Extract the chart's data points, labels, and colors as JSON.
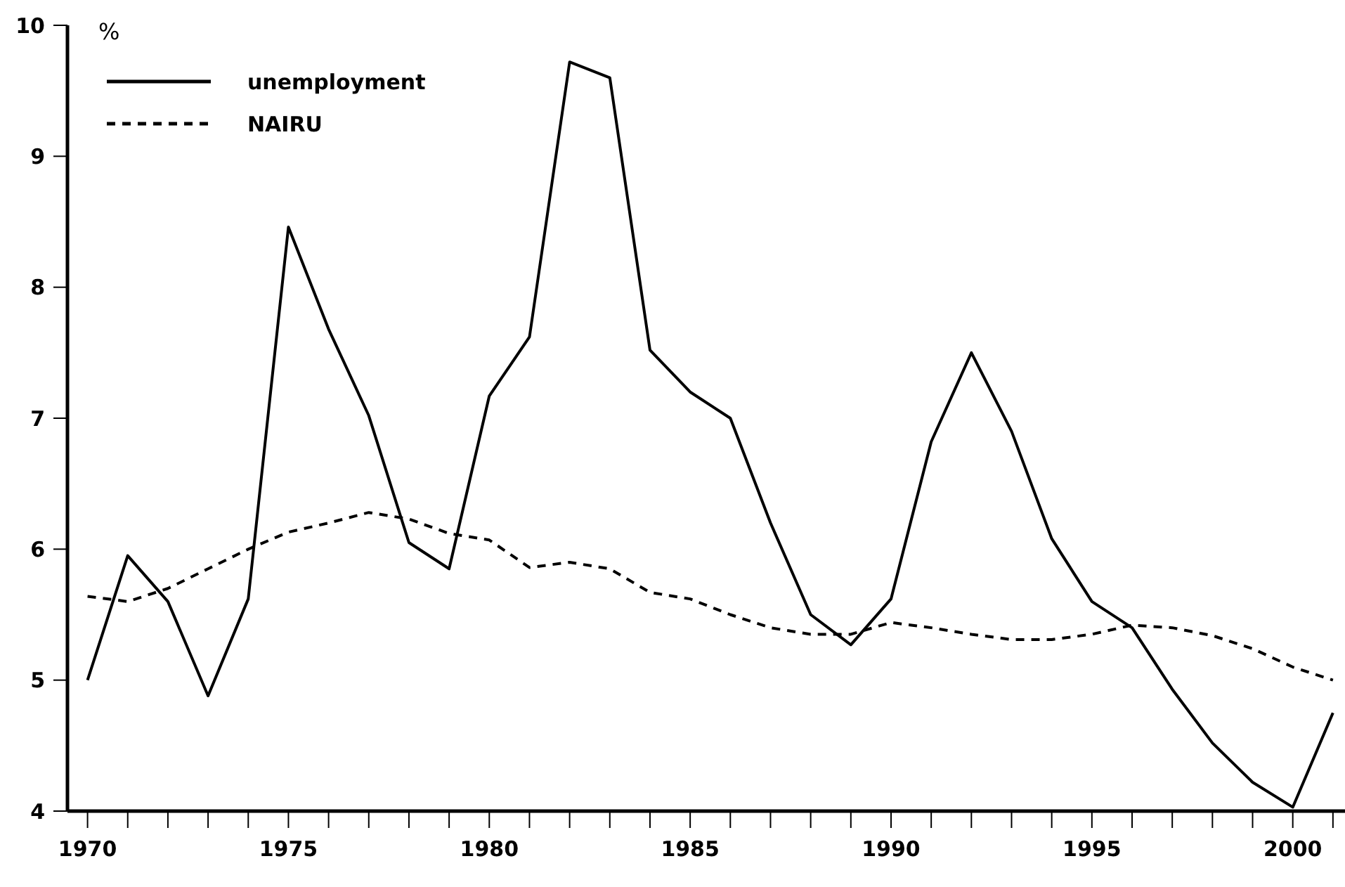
{
  "chart_data": {
    "type": "line",
    "ylabel": "%",
    "legend": "top left",
    "grid": false,
    "x": [
      1970,
      1971,
      1972,
      1973,
      1974,
      1975,
      1976,
      1977,
      1978,
      1979,
      1980,
      1981,
      1982,
      1983,
      1984,
      1985,
      1986,
      1987,
      1988,
      1989,
      1990,
      1991,
      1992,
      1993,
      1994,
      1995,
      1996,
      1997,
      1998,
      1999,
      2000,
      2001
    ],
    "series": [
      {
        "name": "unemployment",
        "color": "#000000",
        "line_style": "solid",
        "values": [
          5.0,
          5.95,
          5.6,
          4.88,
          5.62,
          8.46,
          7.68,
          7.02,
          6.05,
          5.85,
          7.17,
          7.62,
          9.72,
          9.6,
          7.52,
          7.2,
          7.0,
          6.2,
          5.5,
          5.27,
          5.62,
          6.82,
          7.5,
          6.9,
          6.08,
          5.6,
          5.4,
          4.93,
          4.52,
          4.22,
          4.03,
          4.75
        ]
      },
      {
        "name": "NAIRU",
        "color": "#000000",
        "line_style": "dashed",
        "values": [
          5.64,
          5.6,
          5.7,
          5.85,
          6.0,
          6.13,
          6.2,
          6.28,
          6.23,
          6.12,
          6.07,
          5.86,
          5.9,
          5.85,
          5.67,
          5.62,
          5.5,
          5.4,
          5.35,
          5.35,
          5.44,
          5.4,
          5.35,
          5.31,
          5.31,
          5.35,
          5.42,
          5.4,
          5.34,
          5.24,
          5.1,
          5.0
        ]
      }
    ],
    "xlim": [
      1969.5,
      2001.3
    ],
    "xticks": [
      1970,
      {
        "value": 1971,
        "label": null
      },
      {
        "value": 1972,
        "label": null
      },
      {
        "value": 1973,
        "label": null
      },
      {
        "value": 1974,
        "label": null
      },
      1975,
      {
        "value": 1976,
        "label": null
      },
      {
        "value": 1977,
        "label": null
      },
      {
        "value": 1978,
        "label": null
      },
      {
        "value": 1979,
        "label": null
      },
      1980,
      {
        "value": 1981,
        "label": null
      },
      {
        "value": 1982,
        "label": null
      },
      {
        "value": 1983,
        "label": null
      },
      {
        "value": 1984,
        "label": null
      },
      1985,
      {
        "value": 1986,
        "label": null
      },
      {
        "value": 1987,
        "label": null
      },
      {
        "value": 1988,
        "label": null
      },
      {
        "value": 1989,
        "label": null
      },
      1990,
      {
        "value": 1991,
        "label": null
      },
      {
        "value": 1992,
        "label": null
      },
      {
        "value": 1993,
        "label": null
      },
      {
        "value": 1994,
        "label": null
      },
      1995,
      {
        "value": 1996,
        "label": null
      },
      {
        "value": 1997,
        "label": null
      },
      {
        "value": 1998,
        "label": null
      },
      {
        "value": 1999,
        "label": null
      },
      2000,
      {
        "value": 2001,
        "label": null
      }
    ],
    "ylim": [
      4,
      10
    ],
    "yticks": [
      4,
      5,
      6,
      7,
      8,
      9,
      10
    ]
  }
}
